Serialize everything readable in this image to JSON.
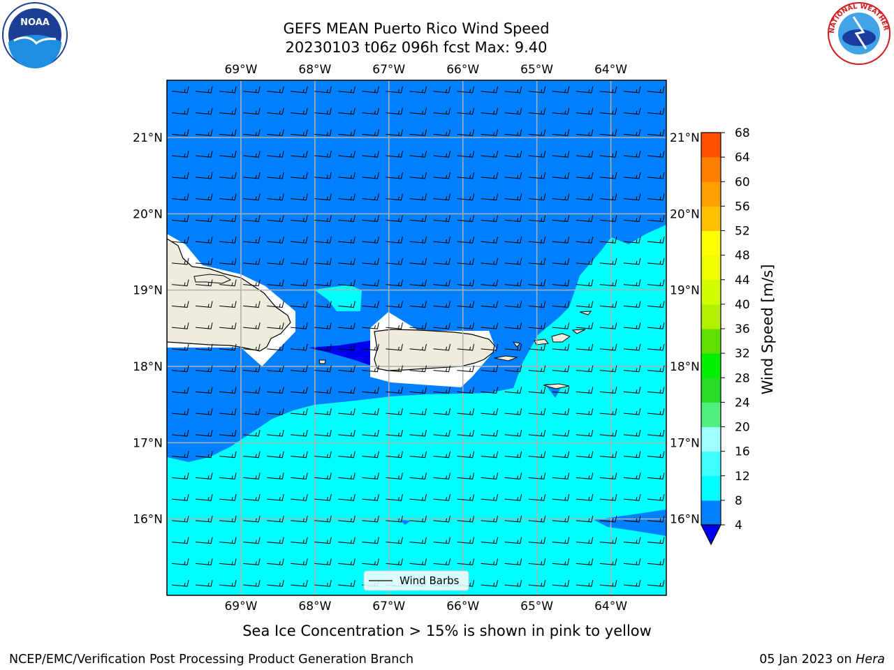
{
  "page": {
    "title_line1": "GEFS MEAN Puerto Rico Wind Speed",
    "title_line2": "20230103 t06z 096h fcst   Max: 9.40",
    "caption": "Sea Ice Concentration > 15% is shown in pink to yellow",
    "footer_left": "NCEP/EMC/Verification Post Processing Product Generation Branch",
    "footer_right_date": "05 Jan 2023 on ",
    "footer_right_host": "Hera",
    "legend_label": "Wind Barbs",
    "logos": {
      "left": {
        "name": "noaa-logo",
        "text": "NOAA"
      },
      "right": {
        "name": "nws-logo",
        "text": "NATIONAL WEATHER SERVICE"
      }
    }
  },
  "chart_data": {
    "type": "heatmap",
    "title": "GEFS MEAN Puerto Rico Wind Speed",
    "subtitle": "20230103 t06z 096h fcst   Max: 9.40",
    "max_value": 9.4,
    "units": "m/s",
    "map": {
      "lon_range": [
        -70.0,
        -63.25
      ],
      "lat_range": [
        15.0,
        21.75
      ],
      "x_ticks": [
        -69,
        -68,
        -67,
        -66,
        -65,
        -64
      ],
      "x_tick_labels": [
        "69°W",
        "68°W",
        "67°W",
        "66°W",
        "65°W",
        "64°W"
      ],
      "y_ticks": [
        21,
        20,
        19,
        18,
        17,
        16
      ],
      "y_tick_labels": [
        "21°N",
        "20°N",
        "19°N",
        "18°N",
        "17°N",
        "16°N"
      ],
      "grid": true,
      "wind_barbs": {
        "direction": "easterly",
        "rows": 24,
        "cols": 21
      }
    },
    "colorbar": {
      "label": "Wind Speed [m/s]",
      "levels": [
        4,
        8,
        12,
        16,
        20,
        24,
        28,
        32,
        36,
        40,
        44,
        48,
        52,
        56,
        60,
        64,
        68
      ],
      "ticks": [
        4,
        8,
        12,
        16,
        20,
        24,
        28,
        32,
        36,
        40,
        44,
        48,
        52,
        56,
        60,
        64,
        68
      ],
      "colors": [
        "#0080ff",
        "#00ffff",
        "#40ffff",
        "#a0ffff",
        "#50f080",
        "#28dc28",
        "#00f000",
        "#60e000",
        "#b0f000",
        "#d0ff00",
        "#f0ff00",
        "#ffff00",
        "#ffc000",
        "#ffa000",
        "#ff8000",
        "#ff5000",
        "#ff2000",
        "#ff0000"
      ],
      "under_color": "#0000f0",
      "extend": "min"
    },
    "colors": {
      "land": "#eeecdc",
      "dark_blue": "#0000f0",
      "blue_4_8": "#0080ff",
      "cyan_8_12": "#00ffff",
      "grid": "#b0b0b0"
    }
  }
}
